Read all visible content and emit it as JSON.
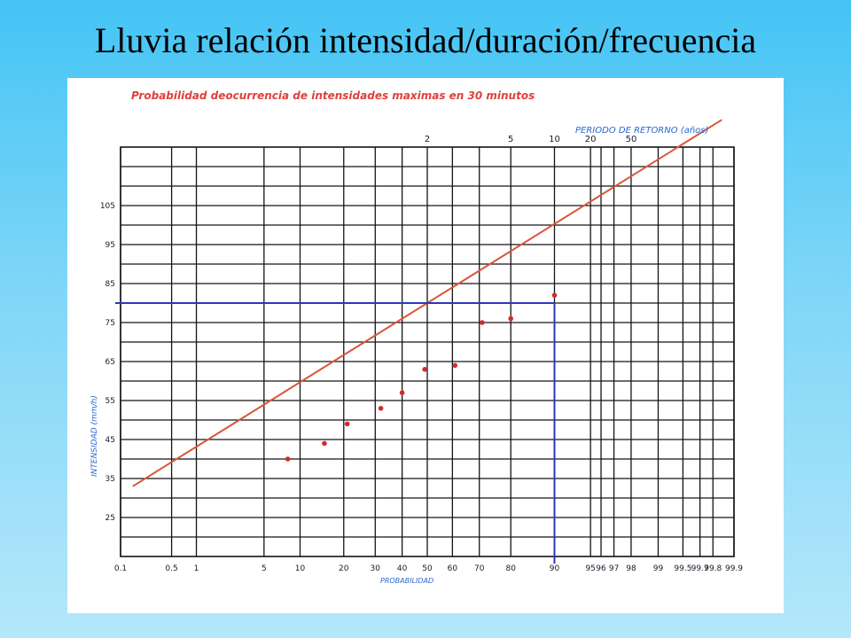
{
  "slide": {
    "title": "Lluvia relación intensidad/duración/frecuencia"
  },
  "chart_data": {
    "type": "scatter",
    "title": "Probabilidad deocurrencia de intensidades maximas en 30 minutos",
    "xlabel": "PROBABILIDAD",
    "ylabel": "INTENSIDAD (mm/h)",
    "top_axis_label": "PERIODO DE RETORNO (años)",
    "x_scale": "normal-probability",
    "x_ticks": [
      "0.1",
      "0.5",
      "1",
      "5",
      "10",
      "20",
      "30",
      "40",
      "50",
      "60",
      "70",
      "80",
      "90",
      "95",
      "96",
      "97",
      "98",
      "99",
      "99.5",
      "99.7",
      "99.8",
      "99.9"
    ],
    "top_ticks": [
      "2",
      "5",
      "10",
      "20",
      "50"
    ],
    "top_tick_probabilities": [
      50,
      80,
      90,
      95,
      98
    ],
    "y_ticks": [
      "25",
      "35",
      "45",
      "55",
      "65",
      "75",
      "85",
      "95",
      "105"
    ],
    "ylim": [
      15,
      120
    ],
    "grid": true,
    "points": [
      {
        "x": 8,
        "y": 40
      },
      {
        "x": 15,
        "y": 44
      },
      {
        "x": 21,
        "y": 49
      },
      {
        "x": 32,
        "y": 53
      },
      {
        "x": 40,
        "y": 57
      },
      {
        "x": 49,
        "y": 63
      },
      {
        "x": 61,
        "y": 64
      },
      {
        "x": 71,
        "y": 75
      },
      {
        "x": 80,
        "y": 76
      },
      {
        "x": 90,
        "y": 82
      }
    ],
    "fit_line": [
      {
        "x": 0.15,
        "y": 33
      },
      {
        "x": 99.85,
        "y": 127
      }
    ],
    "reading": {
      "x": 90,
      "y": 80
    },
    "colors": {
      "grid": "#141414",
      "points": "#d42a2a",
      "fit_line": "#d9553a",
      "reading_line": "#2a38b8",
      "title_text": "#e0403a",
      "axis_label": "#2a6ad0",
      "tick_text": "#1a1a2a"
    }
  }
}
